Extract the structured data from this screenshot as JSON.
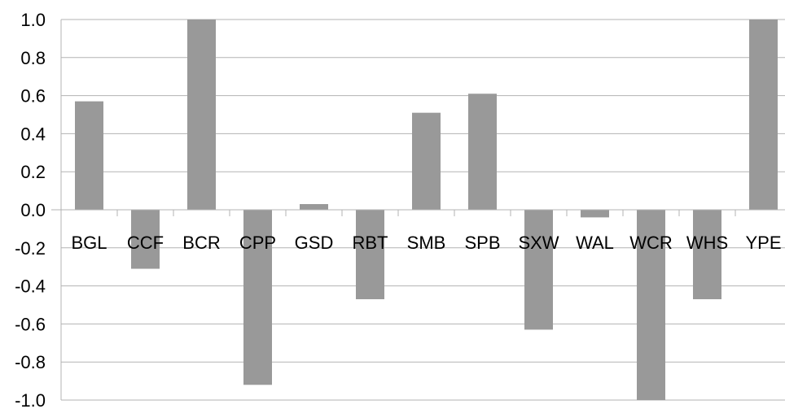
{
  "chart_data": {
    "type": "bar",
    "title": "",
    "xlabel": "",
    "ylabel": "",
    "categories": [
      "BGL",
      "CCF",
      "BCR",
      "CPP",
      "GSD",
      "RBT",
      "SMB",
      "SPB",
      "SXW",
      "WAL",
      "WCR",
      "WHS",
      "YPE"
    ],
    "series": [
      {
        "values": [
          0.57,
          -0.31,
          1.0,
          -0.92,
          0.03,
          -0.47,
          0.51,
          0.61,
          -0.63,
          -0.04,
          -1.0,
          -0.47,
          1.0
        ]
      }
    ],
    "ylim": [
      -1.0,
      1.0
    ],
    "yticks": [
      "-1.0",
      "-0.8",
      "-0.6",
      "-0.4",
      "-0.2",
      "0.0",
      "0.2",
      "0.4",
      "0.6",
      "0.8",
      "1.0"
    ],
    "grid": true,
    "legend": "none",
    "colors": {
      "bar": "#999999",
      "grid": "#b3b3b3",
      "axis": "#b3b3b3",
      "text": "#000000"
    }
  }
}
